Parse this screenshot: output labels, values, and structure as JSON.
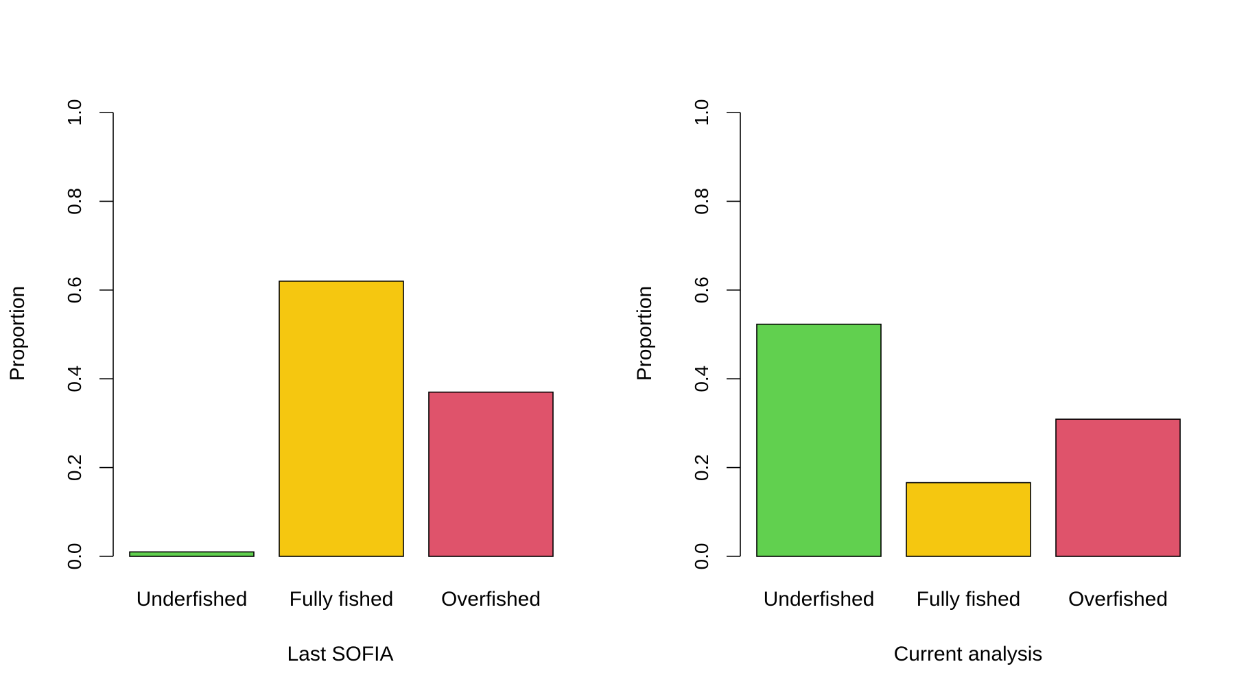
{
  "chart_data": [
    {
      "type": "bar",
      "categories": [
        "Underfished",
        "Fully fished",
        "Overfished"
      ],
      "values": [
        0.01,
        0.62,
        0.37
      ],
      "colors": [
        "#61d04f",
        "#f5c710",
        "#df536b"
      ],
      "title": "",
      "xlabel": "Last SOFIA",
      "ylabel": "Proportion",
      "ylim": [
        0,
        1
      ],
      "yticks": [
        "0.0",
        "0.2",
        "0.4",
        "0.6",
        "0.8",
        "1.0"
      ],
      "grid": false,
      "legend": "none"
    },
    {
      "type": "bar",
      "categories": [
        "Underfished",
        "Fully fished",
        "Overfished"
      ],
      "values": [
        0.523,
        0.166,
        0.309
      ],
      "colors": [
        "#61d04f",
        "#f5c710",
        "#df536b"
      ],
      "title": "",
      "xlabel": "Current analysis",
      "ylabel": "Proportion",
      "ylim": [
        0,
        1
      ],
      "yticks": [
        "0.0",
        "0.2",
        "0.4",
        "0.6",
        "0.8",
        "1.0"
      ],
      "grid": false,
      "legend": "none"
    }
  ]
}
